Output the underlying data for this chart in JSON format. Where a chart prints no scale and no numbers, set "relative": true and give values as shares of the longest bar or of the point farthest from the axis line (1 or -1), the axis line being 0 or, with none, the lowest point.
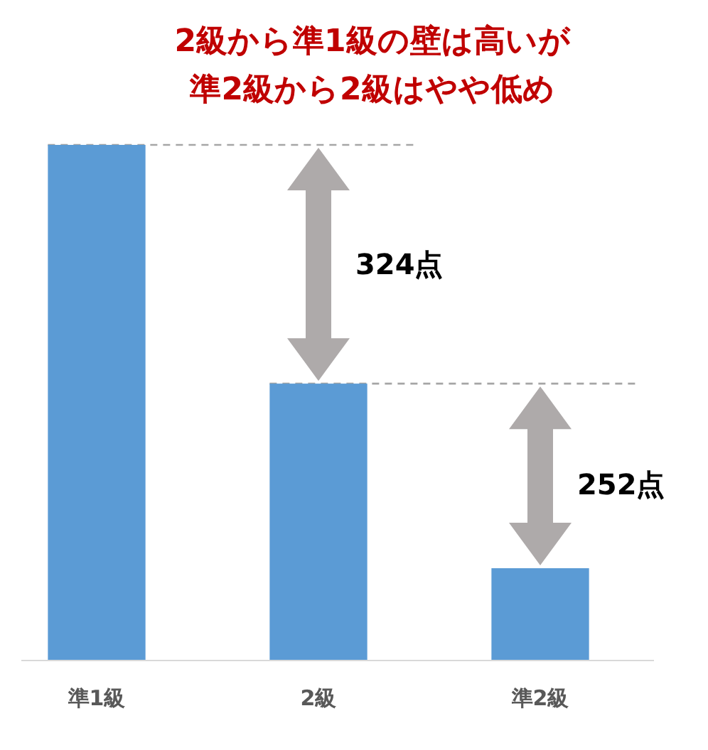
{
  "chart_data": {
    "type": "bar",
    "title": "2級から準1級の壁は高いが準2級から2級はやや低め",
    "categories": [
      "準1級",
      "2級",
      "準2級"
    ],
    "values": [
      1,
      0.537,
      0.179
    ],
    "color": "#5b9bd5",
    "relative": true,
    "ref_lines": [
      {
        "axis": "y",
        "value": 1,
        "color": "#a6a6a6",
        "line_style": "dashed"
      },
      {
        "axis": "y",
        "value": 0.537,
        "color": "#a6a6a6",
        "line_style": "dashed"
      }
    ],
    "annotations": [
      "324点",
      "252点"
    ]
  }
}
